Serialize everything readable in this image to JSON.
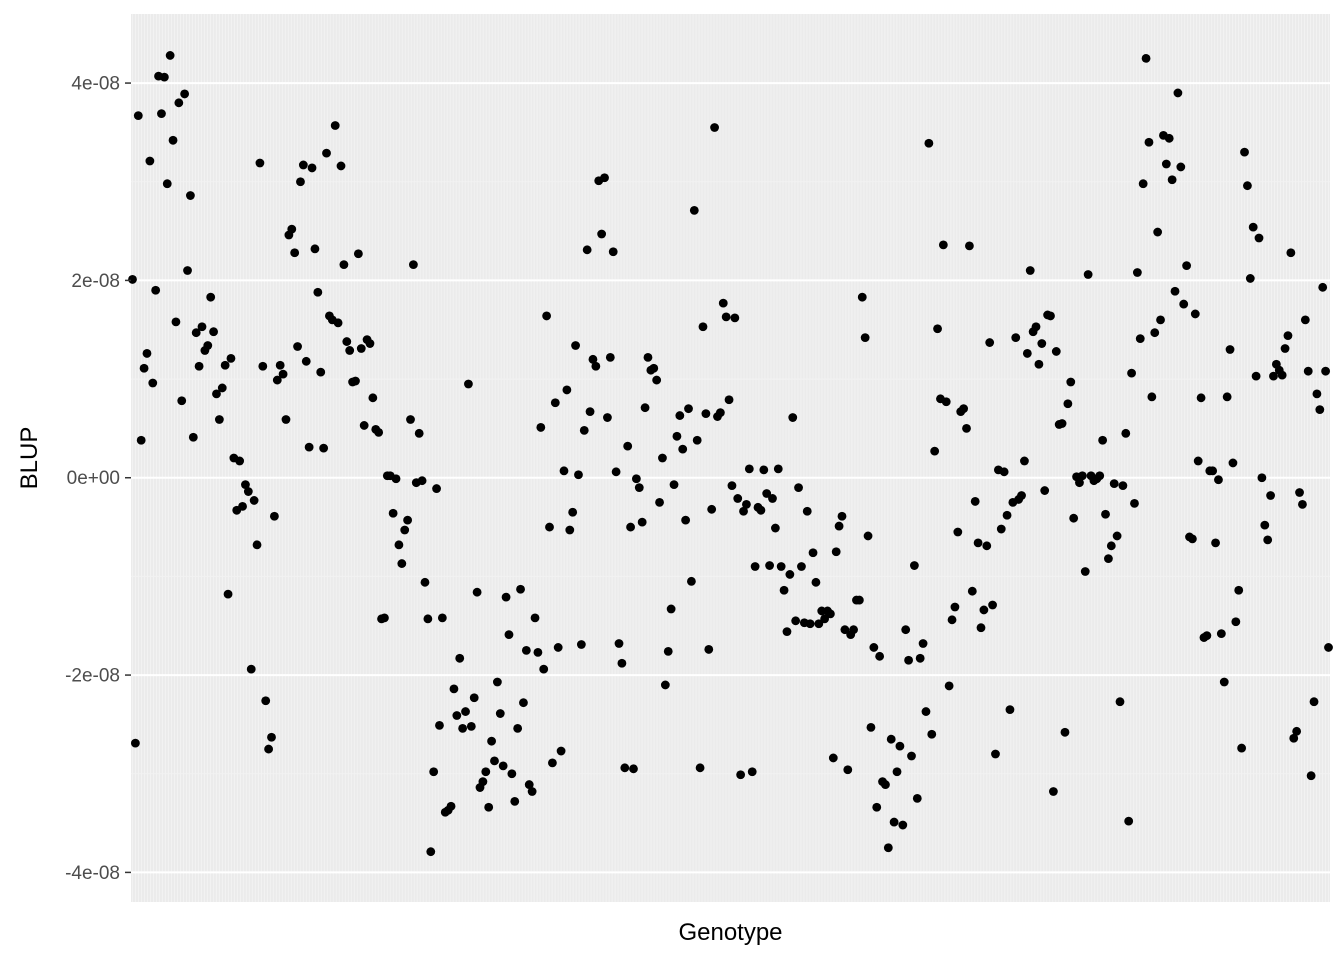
{
  "chart_data": {
    "type": "scatter",
    "title": "",
    "xlabel": "Genotype",
    "ylabel": "BLUP",
    "x_tick_labels_visible": false,
    "x_range": [
      1,
      400
    ],
    "ylim": [
      -4.3e-08,
      4.7e-08
    ],
    "y_ticks": [
      {
        "value": 4e-08,
        "label": "4e-08"
      },
      {
        "value": 2e-08,
        "label": "2e-08"
      },
      {
        "value": 0,
        "label": "0e+00"
      },
      {
        "value": -2e-08,
        "label": "-2e-08"
      },
      {
        "value": -4e-08,
        "label": "-4e-08"
      }
    ],
    "grid": true,
    "legend": "none",
    "colors": {
      "panel": "#ebebeb",
      "grid_major": "#ffffff",
      "grid_minor": "#f2f2f2",
      "point": "#000000",
      "tick_text": "#4d4d4d",
      "axis_title": "#000000"
    },
    "y": [
      2.01e-08,
      -2.69e-08,
      3.67e-08,
      3.8e-09,
      1.11e-08,
      1.26e-08,
      3.21e-08,
      9.6e-09,
      1.9e-08,
      4.07e-08,
      3.69e-08,
      4.06e-08,
      2.98e-08,
      4.28e-08,
      3.42e-08,
      1.58e-08,
      3.8e-08,
      7.8e-09,
      3.89e-08,
      2.1e-08,
      2.86e-08,
      4.1e-09,
      1.47e-08,
      1.13e-08,
      1.53e-08,
      1.29e-08,
      1.34e-08,
      1.83e-08,
      1.48e-08,
      8.5e-09,
      5.9e-09,
      9.1e-09,
      1.14e-08,
      -1.18e-08,
      1.21e-08,
      2e-09,
      -3.3e-09,
      1.7e-09,
      -2.9e-09,
      -7e-10,
      -1.4e-09,
      -1.94e-08,
      -2.3e-09,
      -6.8e-09,
      3.19e-08,
      1.13e-08,
      -2.26e-08,
      -2.75e-08,
      -2.63e-08,
      -3.9e-09,
      9.9e-09,
      1.14e-08,
      1.05e-08,
      5.9e-09,
      2.46e-08,
      2.52e-08,
      2.28e-08,
      1.33e-08,
      3e-08,
      3.17e-08,
      1.18e-08,
      3.1e-09,
      3.14e-08,
      2.32e-08,
      1.88e-08,
      1.07e-08,
      3e-09,
      3.29e-08,
      1.64e-08,
      1.6e-08,
      3.57e-08,
      1.57e-08,
      3.16e-08,
      2.16e-08,
      1.38e-08,
      1.29e-08,
      9.7e-09,
      9.8e-09,
      2.27e-08,
      1.31e-08,
      5.3e-09,
      1.4e-08,
      1.36e-08,
      8.1e-09,
      4.9e-09,
      4.6e-09,
      -1.43e-08,
      -1.42e-08,
      2e-10,
      2e-10,
      -3.6e-09,
      -1e-10,
      -6.8e-09,
      -8.7e-09,
      -5.3e-09,
      -4.3e-09,
      5.9e-09,
      2.16e-08,
      -5e-10,
      4.5e-09,
      -3e-10,
      -1.06e-08,
      -1.43e-08,
      -3.79e-08,
      -2.98e-08,
      -1.1e-09,
      -2.51e-08,
      -1.42e-08,
      -3.39e-08,
      -3.37e-08,
      -3.33e-08,
      -2.14e-08,
      -2.41e-08,
      -1.83e-08,
      -2.54e-08,
      -2.37e-08,
      9.5e-09,
      -2.52e-08,
      -2.23e-08,
      -1.16e-08,
      -3.14e-08,
      -3.08e-08,
      -2.98e-08,
      -3.34e-08,
      -2.67e-08,
      -2.87e-08,
      -2.07e-08,
      -2.39e-08,
      -2.92e-08,
      -1.21e-08,
      -1.59e-08,
      -3e-08,
      -3.28e-08,
      -2.54e-08,
      -1.13e-08,
      -2.28e-08,
      -1.75e-08,
      -3.11e-08,
      -3.18e-08,
      -1.42e-08,
      -1.77e-08,
      5.1e-09,
      -1.94e-08,
      1.64e-08,
      -5e-09,
      -2.89e-08,
      7.6e-09,
      -1.72e-08,
      -2.77e-08,
      7e-10,
      8.9e-09,
      -5.3e-09,
      -3.5e-09,
      1.34e-08,
      3e-10,
      -1.69e-08,
      4.8e-09,
      2.31e-08,
      6.7e-09,
      1.2e-08,
      1.13e-08,
      3.01e-08,
      2.47e-08,
      3.04e-08,
      6.1e-09,
      1.22e-08,
      2.29e-08,
      6e-10,
      -1.68e-08,
      -1.88e-08,
      -2.94e-08,
      3.2e-09,
      -5e-09,
      -2.95e-08,
      -1e-10,
      -1e-09,
      -4.5e-09,
      7.1e-09,
      1.22e-08,
      1.09e-08,
      1.11e-08,
      9.9e-09,
      -2.5e-09,
      2e-09,
      -2.1e-08,
      -1.76e-08,
      -1.33e-08,
      -7e-10,
      4.2e-09,
      6.3e-09,
      2.9e-09,
      -4.3e-09,
      7e-09,
      -1.05e-08,
      2.71e-08,
      3.8e-09,
      -2.94e-08,
      1.53e-08,
      6.5e-09,
      -1.74e-08,
      -3.2e-09,
      3.55e-08,
      6.2e-09,
      6.6e-09,
      1.77e-08,
      1.63e-08,
      7.9e-09,
      -8e-10,
      1.62e-08,
      -2.1e-09,
      -3.01e-08,
      -3.4e-09,
      -2.7e-09,
      9e-10,
      -2.98e-08,
      -9e-09,
      -3e-09,
      -3.3e-09,
      8e-10,
      -1.6e-09,
      -8.9e-09,
      -2.1e-09,
      -5.1e-09,
      9e-10,
      -9e-09,
      -1.14e-08,
      -1.56e-08,
      -9.8e-09,
      6.1e-09,
      -1.45e-08,
      -1e-09,
      -9e-09,
      -1.47e-08,
      -3.4e-09,
      -1.48e-08,
      -7.6e-09,
      -1.06e-08,
      -1.48e-08,
      -1.35e-08,
      -1.43e-08,
      -1.35e-08,
      -1.38e-08,
      -2.84e-08,
      -7.5e-09,
      -4.9e-09,
      -3.9e-09,
      -1.54e-08,
      -2.96e-08,
      -1.59e-08,
      -1.54e-08,
      -1.24e-08,
      -1.24e-08,
      1.83e-08,
      1.42e-08,
      -5.9e-09,
      -2.53e-08,
      -1.72e-08,
      -3.34e-08,
      -1.81e-08,
      -3.08e-08,
      -3.11e-08,
      -3.75e-08,
      -2.65e-08,
      -3.49e-08,
      -2.98e-08,
      -2.72e-08,
      -3.52e-08,
      -1.54e-08,
      -1.85e-08,
      -2.82e-08,
      -8.9e-09,
      -3.25e-08,
      -1.83e-08,
      -1.68e-08,
      -2.37e-08,
      3.39e-08,
      -2.6e-08,
      2.7e-09,
      1.51e-08,
      8e-09,
      2.36e-08,
      7.7e-09,
      -2.11e-08,
      -1.44e-08,
      -1.31e-08,
      -5.5e-09,
      6.7e-09,
      7e-09,
      5e-09,
      2.35e-08,
      -1.15e-08,
      -2.4e-09,
      -6.6e-09,
      -1.52e-08,
      -1.34e-08,
      -6.9e-09,
      1.37e-08,
      -1.29e-08,
      -2.8e-08,
      8e-10,
      -5.2e-09,
      6e-10,
      -3.8e-09,
      -2.35e-08,
      -2.5e-09,
      1.42e-08,
      -2.2e-09,
      -1.8e-09,
      1.7e-09,
      1.26e-08,
      2.1e-08,
      1.48e-08,
      1.53e-08,
      1.15e-08,
      1.36e-08,
      -1.3e-09,
      1.65e-08,
      1.64e-08,
      -3.18e-08,
      1.28e-08,
      5.4e-09,
      5.5e-09,
      -2.58e-08,
      7.5e-09,
      9.7e-09,
      -4.1e-09,
      1e-10,
      -5e-10,
      2e-10,
      -9.5e-09,
      2.06e-08,
      2e-10,
      -3e-10,
      -1e-10,
      2e-10,
      3.8e-09,
      -3.7e-09,
      -8.2e-09,
      -6.9e-09,
      -6e-10,
      -5.9e-09,
      -2.27e-08,
      -8e-10,
      4.5e-09,
      -3.48e-08,
      1.06e-08,
      -2.6e-09,
      2.08e-08,
      1.41e-08,
      2.98e-08,
      4.25e-08,
      3.4e-08,
      8.2e-09,
      1.47e-08,
      2.49e-08,
      1.6e-08,
      3.47e-08,
      3.18e-08,
      3.44e-08,
      3.02e-08,
      1.89e-08,
      3.9e-08,
      3.15e-08,
      1.76e-08,
      2.15e-08,
      -6e-09,
      -6.2e-09,
      1.66e-08,
      1.7e-09,
      8.1e-09,
      -1.62e-08,
      -1.6e-08,
      7e-10,
      7e-10,
      -6.6e-09,
      -2e-10,
      -1.58e-08,
      -2.07e-08,
      8.2e-09,
      1.3e-08,
      1.5e-09,
      -1.46e-08,
      -1.14e-08,
      -2.74e-08,
      3.3e-08,
      2.96e-08,
      2.02e-08,
      2.54e-08,
      1.03e-08,
      2.43e-08,
      0.0,
      -4.8e-09,
      -6.3e-09,
      -1.8e-09,
      1.03e-08,
      1.15e-08,
      1.09e-08,
      1.04e-08,
      1.31e-08,
      1.44e-08,
      2.28e-08,
      -2.64e-08,
      -2.57e-08,
      -1.5e-09,
      -2.7e-09,
      1.6e-08,
      1.08e-08,
      -3.02e-08,
      -2.27e-08,
      8.5e-09,
      6.9e-09,
      1.93e-08,
      1.08e-08,
      -1.72e-08
    ]
  }
}
